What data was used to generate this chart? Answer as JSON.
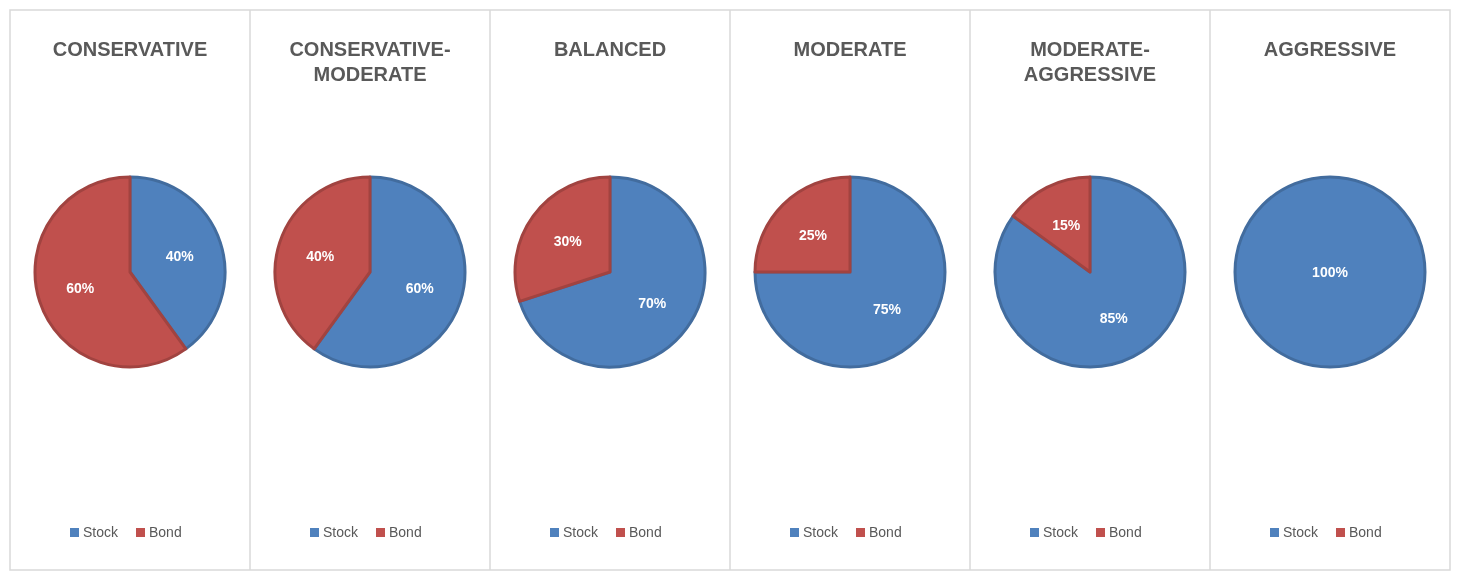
{
  "chart_data": [
    {
      "type": "pie",
      "title": "CONSERVATIVE",
      "categories": [
        "Stock",
        "Bond"
      ],
      "values": [
        40,
        60
      ],
      "colors": [
        "#4f81bd",
        "#c0504d"
      ],
      "value_labels": [
        "40%",
        "60%"
      ],
      "legend": "bottom"
    },
    {
      "type": "pie",
      "title": "CONSERVATIVE-MODERATE",
      "categories": [
        "Stock",
        "Bond"
      ],
      "values": [
        60,
        40
      ],
      "colors": [
        "#4f81bd",
        "#c0504d"
      ],
      "value_labels": [
        "60%",
        "40%"
      ],
      "legend": "bottom"
    },
    {
      "type": "pie",
      "title": "BALANCED",
      "categories": [
        "Stock",
        "Bond"
      ],
      "values": [
        70,
        30
      ],
      "colors": [
        "#4f81bd",
        "#c0504d"
      ],
      "value_labels": [
        "70%",
        "30%"
      ],
      "legend": "bottom"
    },
    {
      "type": "pie",
      "title": "MODERATE",
      "categories": [
        "Stock",
        "Bond"
      ],
      "values": [
        75,
        25
      ],
      "colors": [
        "#4f81bd",
        "#c0504d"
      ],
      "value_labels": [
        "75%",
        "25%"
      ],
      "legend": "bottom"
    },
    {
      "type": "pie",
      "title": "MODERATE-AGGRESSIVE",
      "categories": [
        "Stock",
        "Bond"
      ],
      "values": [
        85,
        15
      ],
      "colors": [
        "#4f81bd",
        "#c0504d"
      ],
      "value_labels": [
        "85%",
        "15%"
      ],
      "legend": "bottom"
    },
    {
      "type": "pie",
      "title": "AGGRESSIVE",
      "categories": [
        "Stock",
        "Bond"
      ],
      "values": [
        100,
        0
      ],
      "colors": [
        "#4f81bd",
        "#c0504d"
      ],
      "value_labels": [
        "100%",
        null
      ],
      "legend": "bottom"
    }
  ]
}
